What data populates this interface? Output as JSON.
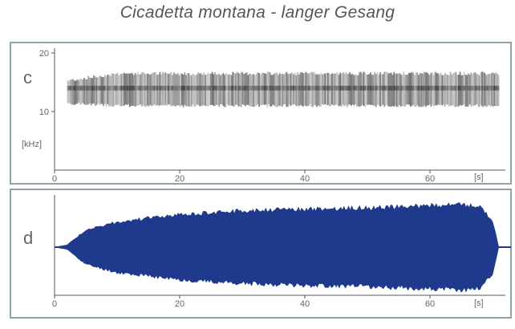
{
  "title": "Cicadetta montana - langer Gesang",
  "colors": {
    "frame": "#8aa89a",
    "axis": "#555555",
    "spectrogram": "#333333",
    "waveform": "#1f3a8c"
  },
  "chart_data": [
    {
      "type": "heatmap",
      "panel_label": "c",
      "xlabel": "[s]",
      "ylabel": "[kHz]",
      "x_ticks": [
        0,
        20,
        40,
        60
      ],
      "y_ticks": [
        10,
        20
      ],
      "xlim": [
        0,
        70
      ],
      "ylim": [
        0,
        22
      ],
      "band": {
        "x_start": 2,
        "x_end": 71,
        "y_low_khz": 11,
        "y_high_khz": 16.5,
        "peak_khz": 14
      }
    },
    {
      "type": "area",
      "panel_label": "d",
      "xlabel": "[s]",
      "x_ticks": [
        0,
        20,
        40,
        60
      ],
      "xlim": [
        0,
        70
      ],
      "envelope": {
        "x": [
          0,
          2,
          5,
          10,
          20,
          30,
          40,
          50,
          60,
          65,
          68,
          70,
          71
        ],
        "amplitude": [
          0,
          0.05,
          0.38,
          0.56,
          0.72,
          0.8,
          0.84,
          0.87,
          0.92,
          0.95,
          0.9,
          0.6,
          0
        ]
      }
    }
  ]
}
